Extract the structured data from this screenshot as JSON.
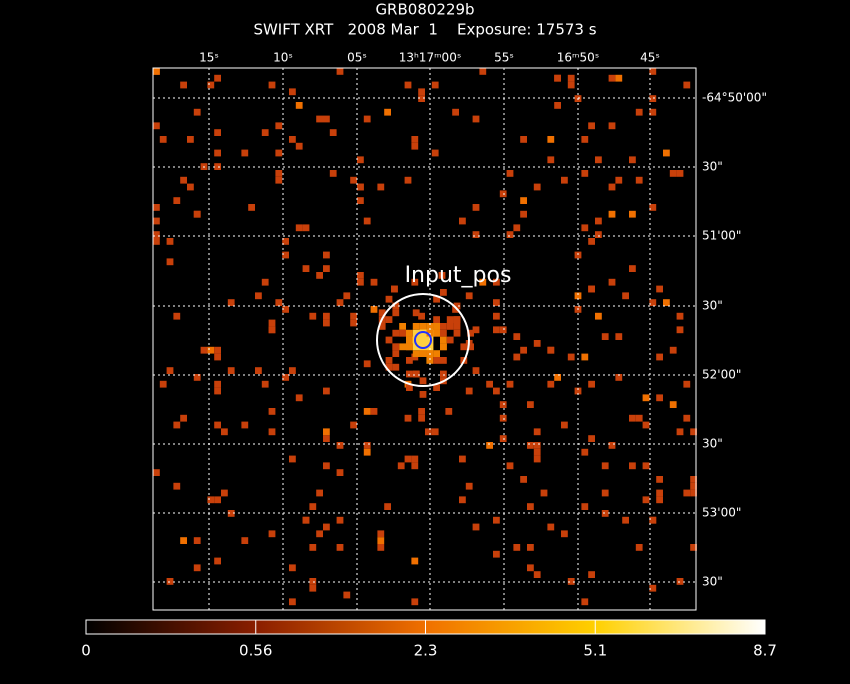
{
  "header": {
    "title": "GRB080229b",
    "subtitle": "SWIFT XRT   2008 Mar  1    Exposure: 17573 s"
  },
  "image": {
    "top_labels": [
      "15ˢ",
      "10ˢ",
      "05ˢ",
      "13ʰ17ᵐ00ˢ",
      "55ˢ",
      "16ᵐ50ˢ",
      "45ˢ"
    ],
    "right_labels": [
      "-64°50'00\"",
      "30\"",
      "51'00\"",
      "30\"",
      "52'00\"",
      "30\"",
      "53'00\"",
      "30\""
    ],
    "annotation": "Input_pos"
  },
  "colorbar": {
    "labels": [
      "0",
      "0.56",
      "2.3",
      "5.1",
      "8.7"
    ]
  }
}
